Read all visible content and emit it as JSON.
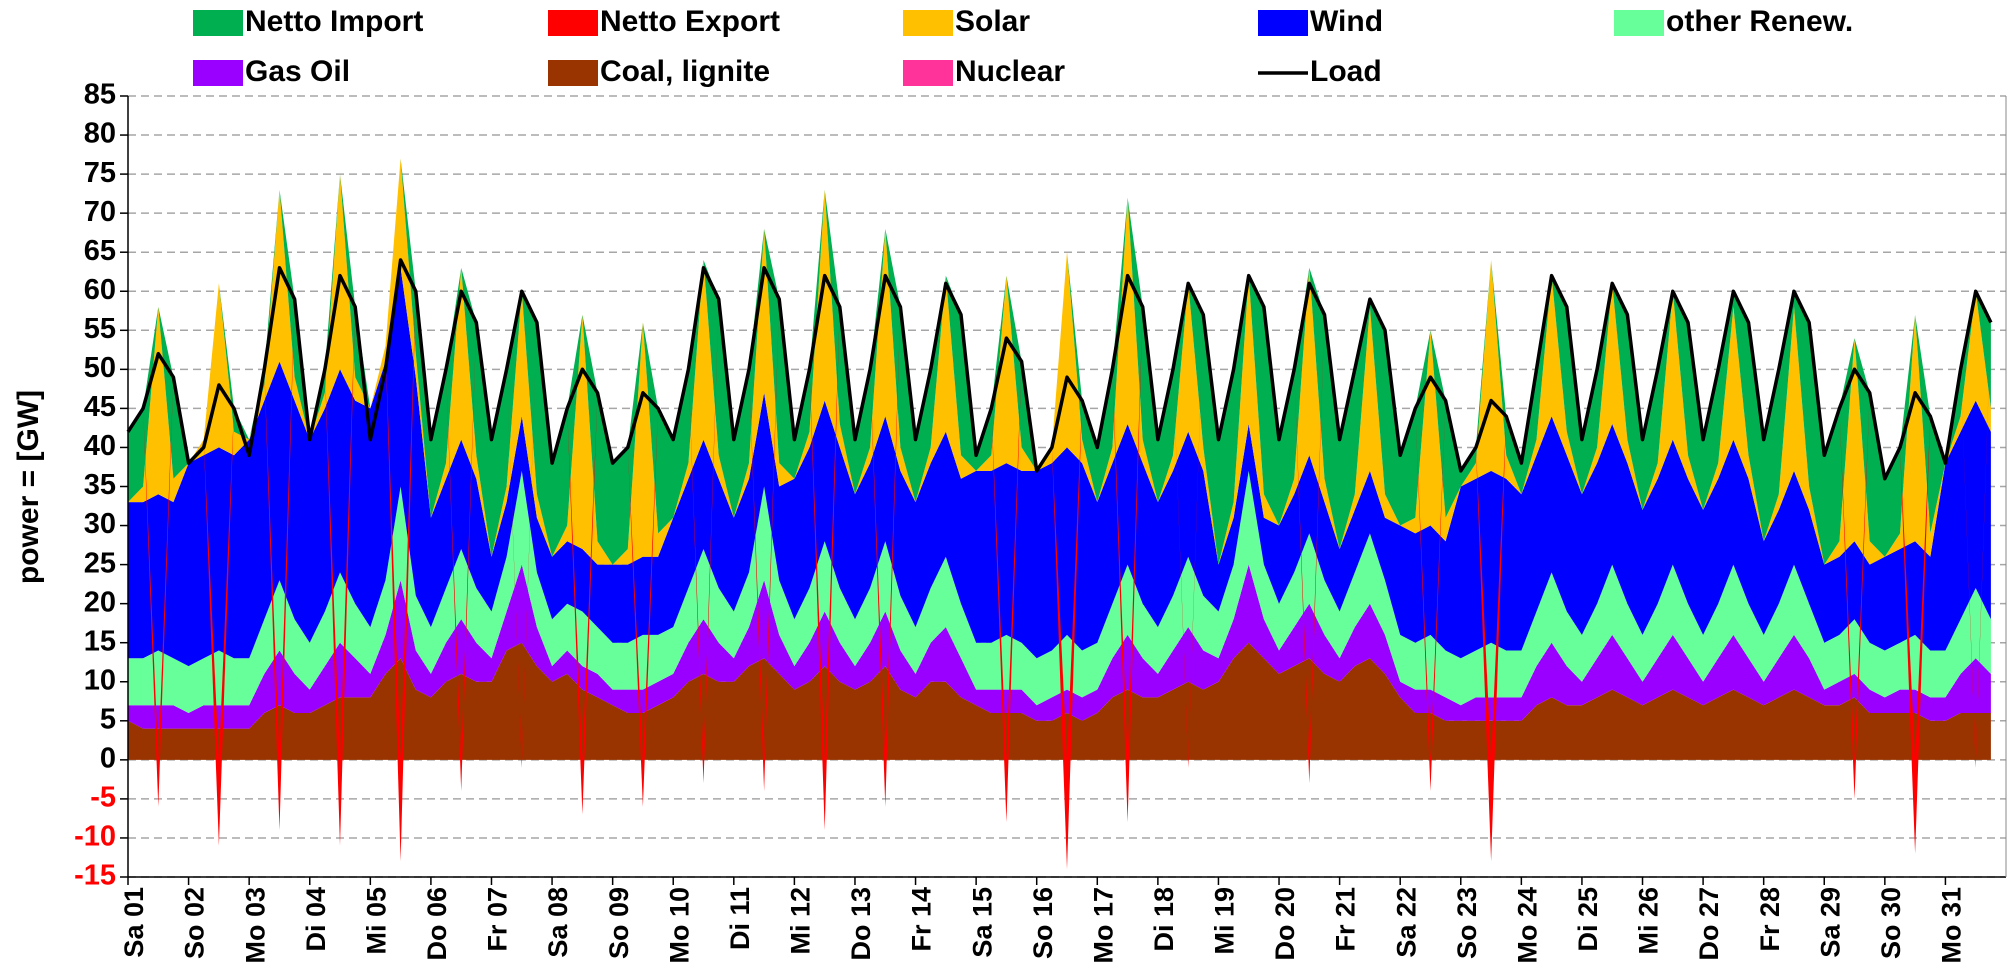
{
  "chart_data": {
    "type": "stacked_area",
    "y_label": "power = [GW]",
    "x": [
      0,
      6,
      12,
      18,
      24,
      30,
      36,
      42,
      48,
      54,
      60,
      66,
      72,
      78,
      84,
      90,
      96,
      102,
      108,
      114,
      120,
      126,
      132,
      138,
      144,
      150,
      156,
      162,
      168,
      174,
      180,
      186,
      192,
      198,
      204,
      210,
      216,
      222,
      228,
      234,
      240,
      246,
      252,
      258,
      264,
      270,
      276,
      282,
      288,
      294,
      300,
      306,
      312,
      318,
      324,
      330,
      336,
      342,
      348,
      354,
      360,
      366,
      372,
      378,
      384,
      390,
      396,
      402,
      408,
      414,
      420,
      426,
      432,
      438,
      444,
      450,
      456,
      462,
      468,
      474,
      480,
      486,
      492,
      498,
      504,
      510,
      516,
      522,
      528,
      534,
      540,
      546,
      552,
      558,
      564,
      570,
      576,
      582,
      588,
      594,
      600,
      606,
      612,
      618,
      624,
      630,
      636,
      642,
      648,
      654,
      660,
      666,
      672,
      678,
      684,
      690,
      696,
      702,
      708,
      714,
      720,
      726,
      732,
      738
    ],
    "xlim": [
      0,
      744
    ],
    "xticks": [
      {
        "value": 0,
        "label": "Sa 01"
      },
      {
        "value": 24,
        "label": "So 02"
      },
      {
        "value": 48,
        "label": "Mo 03"
      },
      {
        "value": 72,
        "label": "Di 04"
      },
      {
        "value": 96,
        "label": "Mi 05"
      },
      {
        "value": 120,
        "label": "Do 06"
      },
      {
        "value": 144,
        "label": "Fr 07"
      },
      {
        "value": 168,
        "label": "Sa 08"
      },
      {
        "value": 192,
        "label": "So 09"
      },
      {
        "value": 216,
        "label": "Mo 10"
      },
      {
        "value": 240,
        "label": "Di 11"
      },
      {
        "value": 264,
        "label": "Mi 12"
      },
      {
        "value": 288,
        "label": "Do 13"
      },
      {
        "value": 312,
        "label": "Fr 14"
      },
      {
        "value": 336,
        "label": "Sa 15"
      },
      {
        "value": 360,
        "label": "So 16"
      },
      {
        "value": 384,
        "label": "Mo 17"
      },
      {
        "value": 408,
        "label": "Di 18"
      },
      {
        "value": 432,
        "label": "Mi 19"
      },
      {
        "value": 456,
        "label": "Do 20"
      },
      {
        "value": 480,
        "label": "Fr 21"
      },
      {
        "value": 504,
        "label": "Sa 22"
      },
      {
        "value": 528,
        "label": "So 23"
      },
      {
        "value": 552,
        "label": "Mo 24"
      },
      {
        "value": 576,
        "label": "Di 25"
      },
      {
        "value": 600,
        "label": "Mi 26"
      },
      {
        "value": 624,
        "label": "Do 27"
      },
      {
        "value": 648,
        "label": "Fr 28"
      },
      {
        "value": 672,
        "label": "Sa 29"
      },
      {
        "value": 696,
        "label": "So 30"
      },
      {
        "value": 720,
        "label": "Mo 31"
      }
    ],
    "ylim": [
      -15,
      85
    ],
    "yticks": [
      -15,
      -10,
      -5,
      0,
      5,
      10,
      15,
      20,
      25,
      30,
      35,
      40,
      45,
      50,
      55,
      60,
      65,
      70,
      75,
      80,
      85
    ],
    "grid": true,
    "negative_tick_color": "#ff0000",
    "series": [
      {
        "name": "Netto Import",
        "color": "#00b050",
        "kind": "area",
        "values": [
          9,
          10,
          0,
          13,
          0,
          0,
          0,
          3,
          0,
          2,
          0,
          10,
          0,
          3,
          0,
          9,
          0,
          0,
          0,
          8,
          10,
          12,
          0,
          17,
          15,
          15,
          0,
          22,
          12,
          15,
          0,
          19,
          13,
          13,
          0,
          16,
          10,
          12,
          0,
          20,
          10,
          12,
          0,
          21,
          5,
          8,
          0,
          15,
          7,
          10,
          0,
          18,
          8,
          10,
          0,
          18,
          2,
          6,
          0,
          11,
          0,
          0,
          0,
          5,
          7,
          10,
          0,
          17,
          8,
          11,
          0,
          17,
          16,
          17,
          0,
          24,
          11,
          14,
          0,
          21,
          14,
          16,
          1,
          21,
          9,
          14,
          0,
          15,
          2,
          2,
          0,
          5,
          4,
          9,
          0,
          16,
          7,
          10,
          0,
          16,
          9,
          12,
          0,
          17,
          9,
          12,
          2,
          17,
          13,
          16,
          2,
          21,
          14,
          17,
          0,
          19,
          10,
          11,
          0,
          15,
          0,
          6,
          0,
          11
        ]
      },
      {
        "name": "Netto Export",
        "color": "#ff0000",
        "kind": "area",
        "values": [
          0,
          0,
          -6,
          0,
          0,
          0,
          -11,
          0,
          0,
          0,
          -9,
          0,
          0,
          0,
          -11,
          0,
          0,
          0,
          -13,
          0,
          0,
          0,
          -4,
          0,
          0,
          0,
          -1,
          0,
          0,
          0,
          -7,
          0,
          0,
          0,
          -6,
          0,
          0,
          0,
          -3,
          0,
          0,
          0,
          -4,
          0,
          0,
          0,
          -9,
          0,
          0,
          0,
          -6,
          0,
          0,
          0,
          0,
          0,
          0,
          0,
          -8,
          0,
          0,
          0,
          -14,
          0,
          0,
          0,
          -8,
          0,
          0,
          0,
          -1,
          0,
          0,
          0,
          0,
          0,
          0,
          0,
          -3,
          0,
          0,
          0,
          0,
          0,
          0,
          0,
          -4,
          0,
          0,
          0,
          -13,
          0,
          0,
          0,
          0,
          0,
          0,
          0,
          0,
          0,
          0,
          0,
          0,
          0,
          0,
          0,
          0,
          0,
          0,
          0,
          0,
          0,
          0,
          0,
          -5,
          0,
          0,
          0,
          -12,
          0,
          0,
          0,
          -1,
          0
        ]
      },
      {
        "name": "Solar",
        "color": "#ffc000",
        "kind": "area",
        "values": [
          0,
          2,
          24,
          3,
          0,
          2,
          21,
          3,
          0,
          2,
          22,
          3,
          0,
          2,
          25,
          3,
          0,
          2,
          14,
          3,
          0,
          2,
          22,
          3,
          0,
          2,
          16,
          3,
          0,
          2,
          30,
          3,
          0,
          2,
          30,
          3,
          0,
          2,
          23,
          3,
          0,
          2,
          21,
          3,
          0,
          2,
          27,
          3,
          0,
          2,
          24,
          3,
          0,
          2,
          20,
          3,
          0,
          2,
          24,
          3,
          0,
          2,
          25,
          3,
          0,
          2,
          29,
          3,
          0,
          2,
          19,
          3,
          0,
          2,
          19,
          3,
          0,
          2,
          24,
          3,
          0,
          2,
          21,
          3,
          0,
          2,
          25,
          3,
          0,
          2,
          27,
          3,
          0,
          2,
          18,
          3,
          0,
          2,
          18,
          3,
          0,
          2,
          19,
          3,
          0,
          2,
          17,
          3,
          0,
          2,
          21,
          3,
          0,
          2,
          26,
          3,
          0,
          2,
          29,
          3,
          0,
          2,
          14,
          3
        ]
      },
      {
        "name": "Wind",
        "color": "#0000ff",
        "kind": "area",
        "values": [
          20,
          20,
          20,
          20,
          26,
          26,
          26,
          26,
          28,
          28,
          28,
          28,
          26,
          26,
          26,
          26,
          28,
          28,
          28,
          28,
          14,
          14,
          14,
          14,
          7,
          7,
          7,
          7,
          8,
          8,
          8,
          8,
          10,
          10,
          10,
          10,
          14,
          14,
          14,
          14,
          12,
          12,
          12,
          12,
          18,
          18,
          18,
          18,
          16,
          16,
          16,
          16,
          16,
          16,
          16,
          16,
          22,
          22,
          22,
          22,
          24,
          24,
          24,
          24,
          18,
          18,
          18,
          18,
          16,
          16,
          16,
          16,
          6,
          6,
          6,
          6,
          10,
          10,
          10,
          10,
          8,
          8,
          8,
          8,
          14,
          14,
          14,
          14,
          22,
          22,
          22,
          22,
          20,
          20,
          20,
          20,
          18,
          18,
          18,
          18,
          16,
          16,
          16,
          16,
          16,
          16,
          16,
          16,
          12,
          12,
          12,
          12,
          10,
          10,
          10,
          10,
          12,
          12,
          12,
          12,
          24,
          24,
          24,
          24
        ]
      },
      {
        "name": "other Renew.",
        "color": "#66ff99",
        "kind": "area",
        "values": [
          6,
          6,
          7,
          6,
          6,
          6,
          7,
          6,
          6,
          7,
          9,
          7,
          6,
          7,
          9,
          7,
          6,
          7,
          12,
          7,
          6,
          7,
          9,
          7,
          6,
          7,
          12,
          7,
          6,
          6,
          7,
          6,
          6,
          6,
          7,
          6,
          6,
          7,
          9,
          7,
          6,
          7,
          12,
          7,
          6,
          7,
          9,
          7,
          6,
          7,
          9,
          7,
          6,
          7,
          9,
          7,
          6,
          6,
          7,
          6,
          6,
          6,
          7,
          6,
          6,
          7,
          9,
          7,
          6,
          7,
          9,
          7,
          6,
          7,
          12,
          7,
          6,
          7,
          9,
          7,
          6,
          7,
          9,
          7,
          6,
          6,
          7,
          6,
          6,
          6,
          7,
          6,
          6,
          7,
          9,
          7,
          6,
          7,
          9,
          7,
          6,
          7,
          9,
          7,
          6,
          7,
          9,
          7,
          6,
          7,
          9,
          7,
          6,
          6,
          7,
          6,
          6,
          6,
          7,
          6,
          6,
          7,
          9,
          7
        ]
      },
      {
        "name": "Gas Oil",
        "color": "#9900ff",
        "kind": "area",
        "values": [
          2,
          3,
          3,
          3,
          2,
          3,
          3,
          3,
          3,
          5,
          7,
          5,
          3,
          5,
          7,
          5,
          3,
          5,
          10,
          5,
          3,
          5,
          7,
          5,
          3,
          5,
          10,
          5,
          2,
          3,
          3,
          3,
          2,
          3,
          3,
          3,
          3,
          5,
          7,
          5,
          3,
          5,
          10,
          5,
          3,
          5,
          7,
          5,
          3,
          5,
          7,
          5,
          3,
          5,
          7,
          5,
          2,
          3,
          3,
          3,
          2,
          3,
          3,
          3,
          3,
          5,
          7,
          5,
          3,
          5,
          7,
          5,
          3,
          5,
          10,
          5,
          3,
          5,
          7,
          5,
          3,
          5,
          7,
          5,
          2,
          3,
          3,
          3,
          2,
          3,
          3,
          3,
          3,
          5,
          7,
          5,
          3,
          5,
          7,
          5,
          3,
          5,
          7,
          5,
          3,
          5,
          7,
          5,
          3,
          5,
          7,
          5,
          2,
          3,
          3,
          3,
          2,
          3,
          3,
          3,
          3,
          5,
          7,
          5
        ]
      },
      {
        "name": "Coal, lignite",
        "color": "#993300",
        "kind": "area",
        "values": [
          5,
          4,
          4,
          4,
          4,
          4,
          4,
          4,
          4,
          6,
          7,
          6,
          6,
          7,
          8,
          8,
          8,
          11,
          13,
          9,
          8,
          10,
          11,
          10,
          10,
          14,
          15,
          12,
          10,
          11,
          9,
          8,
          7,
          6,
          6,
          7,
          8,
          10,
          11,
          10,
          10,
          12,
          13,
          11,
          9,
          10,
          12,
          10,
          9,
          10,
          12,
          9,
          8,
          10,
          10,
          8,
          7,
          6,
          6,
          6,
          5,
          5,
          6,
          5,
          6,
          8,
          9,
          8,
          8,
          9,
          10,
          9,
          10,
          13,
          15,
          13,
          11,
          12,
          13,
          11,
          10,
          12,
          13,
          11,
          8,
          6,
          6,
          5,
          5,
          5,
          5,
          5,
          5,
          7,
          8,
          7,
          7,
          8,
          9,
          8,
          7,
          8,
          9,
          8,
          7,
          8,
          9,
          8,
          7,
          8,
          9,
          8,
          7,
          7,
          8,
          6,
          6,
          6,
          6,
          5,
          5,
          6,
          6,
          6
        ]
      },
      {
        "name": "Nuclear",
        "color": "#ff3399",
        "kind": "area",
        "values": [
          0,
          0,
          0,
          0,
          0,
          0,
          0,
          0,
          0,
          0,
          0,
          0,
          0,
          0,
          0,
          0,
          0,
          0,
          0,
          0,
          0,
          0,
          0,
          0,
          0,
          0,
          0,
          0,
          0,
          0,
          0,
          0,
          0,
          0,
          0,
          0,
          0,
          0,
          0,
          0,
          0,
          0,
          0,
          0,
          0,
          0,
          0,
          0,
          0,
          0,
          0,
          0,
          0,
          0,
          0,
          0,
          0,
          0,
          0,
          0,
          0,
          0,
          0,
          0,
          0,
          0,
          0,
          0,
          0,
          0,
          0,
          0,
          0,
          0,
          0,
          0,
          0,
          0,
          0,
          0,
          0,
          0,
          0,
          0,
          0,
          0,
          0,
          0,
          0,
          0,
          0,
          0,
          0,
          0,
          0,
          0,
          0,
          0,
          0,
          0,
          0,
          0,
          0,
          0,
          0,
          0,
          0,
          0,
          0,
          0,
          0,
          0,
          0,
          0,
          0,
          0,
          0,
          0,
          0,
          0,
          0,
          0,
          0,
          0
        ]
      },
      {
        "name": "Load",
        "color": "#000000",
        "kind": "line",
        "values": [
          42,
          45,
          52,
          49,
          38,
          40,
          48,
          45,
          39,
          50,
          63,
          59,
          41,
          50,
          62,
          58,
          41,
          50,
          64,
          60,
          41,
          50,
          60,
          56,
          41,
          50,
          60,
          56,
          38,
          45,
          50,
          47,
          38,
          40,
          47,
          45,
          41,
          50,
          63,
          59,
          41,
          50,
          63,
          59,
          41,
          50,
          62,
          58,
          41,
          50,
          62,
          58,
          41,
          50,
          61,
          57,
          39,
          45,
          54,
          51,
          37,
          40,
          49,
          46,
          40,
          50,
          62,
          58,
          41,
          50,
          61,
          57,
          41,
          50,
          62,
          58,
          41,
          50,
          61,
          57,
          41,
          50,
          59,
          55,
          39,
          45,
          49,
          46,
          37,
          40,
          46,
          44,
          38,
          50,
          62,
          58,
          41,
          50,
          61,
          57,
          41,
          50,
          60,
          56,
          41,
          50,
          60,
          56,
          41,
          50,
          60,
          56,
          39,
          45,
          50,
          47,
          36,
          40,
          47,
          44,
          38,
          50,
          60,
          56
        ]
      }
    ]
  }
}
